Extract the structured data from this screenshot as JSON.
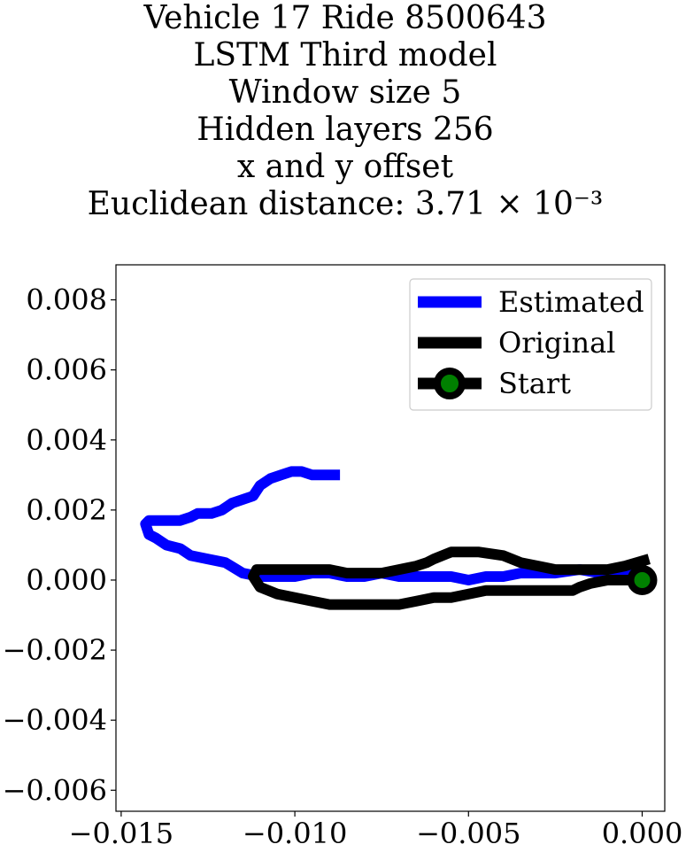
{
  "chart_data": {
    "type": "line",
    "title_lines": [
      "Vehicle 17 Ride 8500643",
      "LSTM Third model",
      "Window size 5",
      "Hidden layers 256",
      "x and y offset",
      "Euclidean distance: 3.71 × 10⁻³"
    ],
    "xlim": [
      -0.01515,
      0.00065
    ],
    "ylim": [
      -0.0066,
      0.009
    ],
    "xticks": [
      {
        "value": -0.015,
        "label": "−0.015"
      },
      {
        "value": -0.01,
        "label": "−0.010"
      },
      {
        "value": -0.005,
        "label": "−0.005"
      },
      {
        "value": 0.0,
        "label": "0.000"
      }
    ],
    "yticks": [
      {
        "value": 0.008,
        "label": "0.008"
      },
      {
        "value": 0.006,
        "label": "0.006"
      },
      {
        "value": 0.004,
        "label": "0.004"
      },
      {
        "value": 0.002,
        "label": "0.002"
      },
      {
        "value": 0.0,
        "label": "0.000"
      },
      {
        "value": -0.002,
        "label": "−0.002"
      },
      {
        "value": -0.004,
        "label": "−0.004"
      },
      {
        "value": -0.006,
        "label": "−0.006"
      }
    ],
    "grid": false,
    "legend_position": "top-right",
    "series": [
      {
        "name": "Estimated",
        "color": "#0000ff",
        "x": [
          0.0,
          -0.0005,
          -0.0012,
          -0.0018,
          -0.0025,
          -0.003,
          -0.0035,
          -0.004,
          -0.0045,
          -0.005,
          -0.0055,
          -0.006,
          -0.0065,
          -0.007,
          -0.0075,
          -0.008,
          -0.0085,
          -0.009,
          -0.0095,
          -0.01,
          -0.0105,
          -0.011,
          -0.0115,
          -0.012,
          -0.0125,
          -0.013,
          -0.0133,
          -0.0137,
          -0.014,
          -0.0142,
          -0.0143,
          -0.0142,
          -0.0138,
          -0.0133,
          -0.013,
          -0.0128,
          -0.0124,
          -0.0121,
          -0.0118,
          -0.0112,
          -0.011,
          -0.0107,
          -0.0104,
          -0.0101,
          -0.0098,
          -0.0095,
          -0.0091,
          -0.0087
        ],
        "y": [
          0.0001,
          0.0002,
          0.0002,
          0.0003,
          0.0002,
          0.0002,
          0.0002,
          0.0001,
          0.0001,
          0.0,
          0.0001,
          0.0001,
          0.0001,
          0.0001,
          0.0002,
          0.0001,
          0.0001,
          0.0002,
          0.0002,
          0.0001,
          0.0001,
          0.0001,
          0.0002,
          0.0005,
          0.0006,
          0.0007,
          0.0009,
          0.001,
          0.0012,
          0.0013,
          0.0016,
          0.0017,
          0.0017,
          0.0017,
          0.0018,
          0.0019,
          0.0019,
          0.002,
          0.0022,
          0.0024,
          0.0027,
          0.0029,
          0.003,
          0.0031,
          0.0031,
          0.003,
          0.003,
          0.003
        ]
      },
      {
        "name": "Original",
        "color": "#000000",
        "x": [
          0.0,
          -0.0005,
          -0.001,
          -0.0015,
          -0.0018,
          -0.002,
          -0.0025,
          -0.003,
          -0.0035,
          -0.004,
          -0.0045,
          -0.005,
          -0.0055,
          -0.006,
          -0.0065,
          -0.007,
          -0.0075,
          -0.008,
          -0.0085,
          -0.009,
          -0.0095,
          -0.01,
          -0.0105,
          -0.011,
          -0.0112,
          -0.0111,
          -0.0108,
          -0.0105,
          -0.01,
          -0.0095,
          -0.009,
          -0.0085,
          -0.008,
          -0.0075,
          -0.007,
          -0.0065,
          -0.0062,
          -0.006,
          -0.0055,
          -0.0047,
          -0.004,
          -0.0035,
          -0.003,
          -0.0025,
          -0.002,
          -0.0015,
          -0.001,
          -0.0005,
          0.0002
        ],
        "y": [
          0.0,
          0.0,
          0.0,
          -0.0001,
          -0.0002,
          -0.0003,
          -0.0003,
          -0.0003,
          -0.0003,
          -0.0003,
          -0.0003,
          -0.0004,
          -0.0005,
          -0.0005,
          -0.0006,
          -0.0007,
          -0.0007,
          -0.0007,
          -0.0007,
          -0.0007,
          -0.0006,
          -0.0005,
          -0.0004,
          -0.0002,
          0.0001,
          0.0003,
          0.0003,
          0.0003,
          0.0003,
          0.0003,
          0.0003,
          0.0002,
          0.0002,
          0.0002,
          0.0003,
          0.0004,
          0.0005,
          0.0006,
          0.0008,
          0.0008,
          0.0007,
          0.0005,
          0.0004,
          0.0003,
          0.0003,
          0.0003,
          0.0003,
          0.0004,
          0.0006
        ]
      },
      {
        "name": "Start",
        "color": "#000000",
        "marker_face_color": "#008000",
        "x": [
          0.0
        ],
        "y": [
          0.0
        ]
      }
    ]
  },
  "legend": {
    "items": [
      {
        "label": "Estimated"
      },
      {
        "label": "Original"
      },
      {
        "label": "Start"
      }
    ]
  }
}
